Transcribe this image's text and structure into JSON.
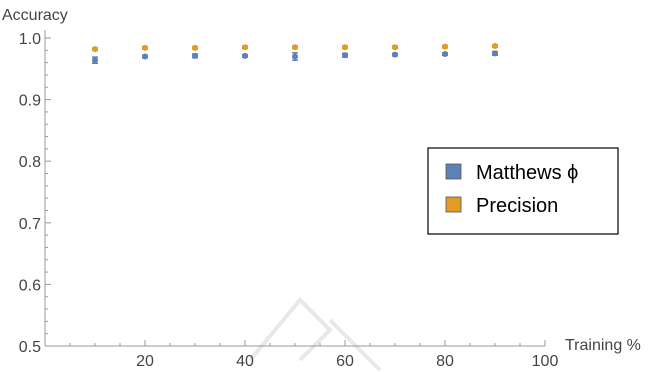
{
  "chart_data": {
    "type": "scatter",
    "title": "",
    "xlabel": "Training %",
    "ylabel": "Accuracy",
    "xlim": [
      0,
      100
    ],
    "ylim": [
      0.5,
      1.0
    ],
    "x_ticks": [
      20,
      40,
      60,
      80,
      100
    ],
    "x_tick_labels": [
      "20",
      "40",
      "60",
      "80",
      "100"
    ],
    "y_ticks": [
      0.5,
      0.6,
      0.7,
      0.8,
      0.9,
      1.0
    ],
    "y_tick_labels": [
      "0.5",
      "0.6",
      "0.7",
      "0.8",
      "0.9",
      "1.0"
    ],
    "grid": false,
    "legend_position": "right",
    "x": [
      10,
      20,
      30,
      40,
      50,
      60,
      70,
      80,
      90
    ],
    "series": [
      {
        "name": "Matthews ϕ",
        "color": "#5E81B5",
        "values": [
          0.964,
          0.97,
          0.971,
          0.971,
          0.97,
          0.972,
          0.973,
          0.974,
          0.975
        ],
        "error": [
          0.005,
          0.002,
          0.003,
          0.002,
          0.006,
          0.003,
          0.002,
          0.002,
          0.003
        ]
      },
      {
        "name": "Precision",
        "color": "#E19C24",
        "values": [
          0.982,
          0.984,
          0.984,
          0.985,
          0.985,
          0.985,
          0.985,
          0.986,
          0.987
        ],
        "error": [
          0.002,
          0.002,
          0.002,
          0.002,
          0.002,
          0.002,
          0.002,
          0.002,
          0.002
        ]
      }
    ]
  }
}
